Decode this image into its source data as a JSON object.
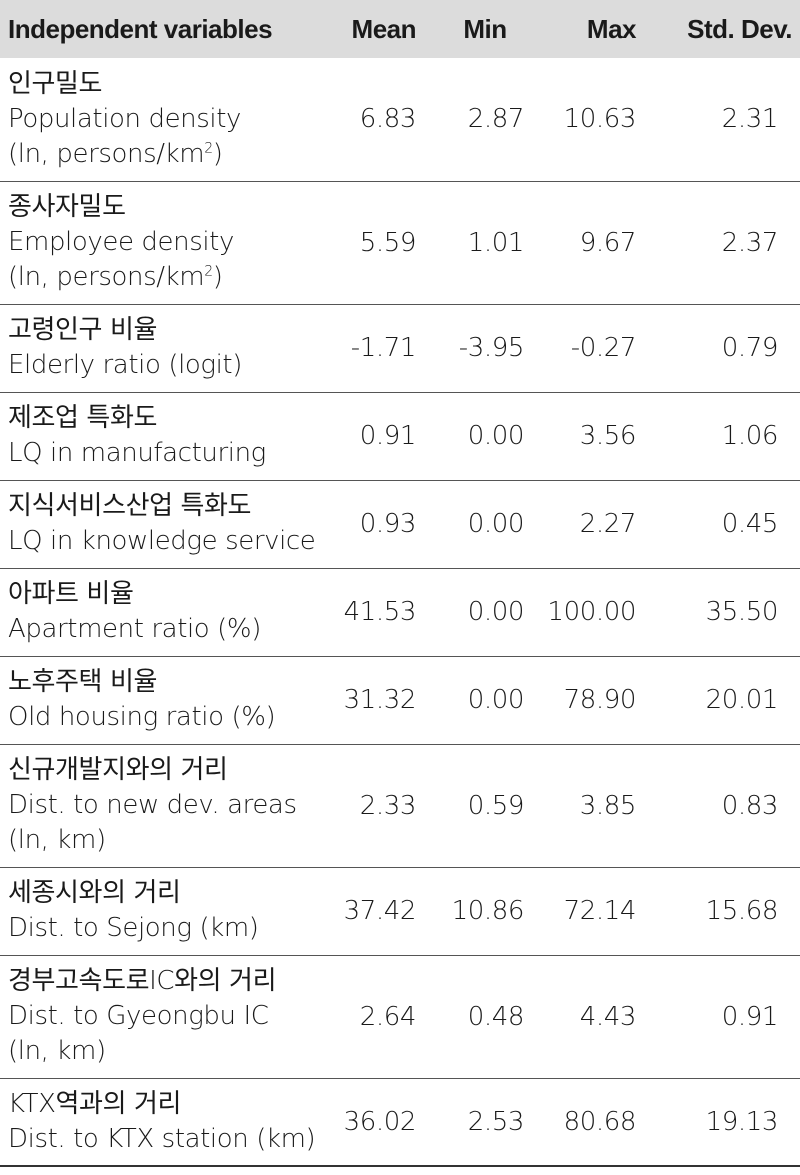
{
  "header": {
    "name": "Independent variables",
    "mean": "Mean",
    "min": "Min",
    "max": "Max",
    "sd": "Std. Dev."
  },
  "rows": [
    {
      "ko": "인구밀도",
      "en": "Population density",
      "unit_pre": "(ln, persons/km",
      "unit_sup": "2",
      "unit_post": ")",
      "mean": "6.83",
      "min": "2.87",
      "max": "10.63",
      "sd": "2.31"
    },
    {
      "ko": "종사자밀도",
      "en": "Employee density",
      "unit_pre": "(ln, persons/km",
      "unit_sup": "2",
      "unit_post": ")",
      "mean": "5.59",
      "min": "1.01",
      "max": "9.67",
      "sd": "2.37"
    },
    {
      "ko": "고령인구 비율",
      "en": "Elderly ratio (logit)",
      "mean": "-1.71",
      "min": "-3.95",
      "max": "-0.27",
      "sd": "0.79"
    },
    {
      "ko": "제조업 특화도",
      "en": "LQ in manufacturing",
      "mean": "0.91",
      "min": "0.00",
      "max": "3.56",
      "sd": "1.06"
    },
    {
      "ko": "지식서비스산업 특화도",
      "en": "LQ in knowledge service",
      "mean": "0.93",
      "min": "0.00",
      "max": "2.27",
      "sd": "0.45"
    },
    {
      "ko": "아파트 비율",
      "en": "Apartment ratio (%)",
      "mean": "41.53",
      "min": "0.00",
      "max": "100.00",
      "sd": "35.50"
    },
    {
      "ko": "노후주택 비율",
      "en": "Old housing ratio (%)",
      "mean": "31.32",
      "min": "0.00",
      "max": "78.90",
      "sd": "20.01"
    },
    {
      "ko": "신규개발지와의 거리",
      "en": "Dist. to new dev. areas",
      "unit": "(ln, km)",
      "mean": "2.33",
      "min": "0.59",
      "max": "3.85",
      "sd": "0.83"
    },
    {
      "ko": "세종시와의 거리",
      "en": "Dist. to Sejong (km)",
      "mean": "37.42",
      "min": "10.86",
      "max": "72.14",
      "sd": "15.68"
    },
    {
      "ko": "경부고속도로IC와의 거리",
      "en": "Dist. to Gyeongbu IC",
      "unit": "(ln, km)",
      "mean": "2.64",
      "min": "0.48",
      "max": "4.43",
      "sd": "0.91"
    },
    {
      "ko": "KTX역과의 거리",
      "en": "Dist. to KTX station (km)",
      "mean": "36.02",
      "min": "2.53",
      "max": "80.68",
      "sd": "19.13"
    }
  ]
}
